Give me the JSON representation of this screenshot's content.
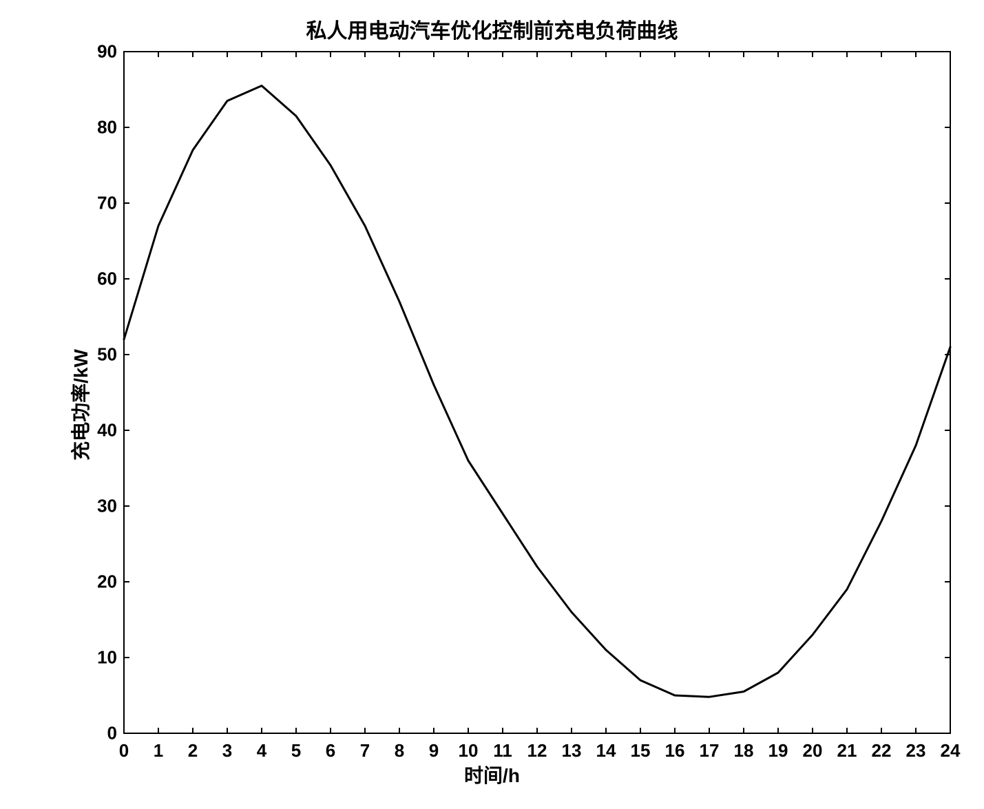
{
  "chart": {
    "type": "line",
    "title": "私人用电动汽车优化控制前充电负荷曲线",
    "title_fontsize": 30,
    "xlabel": "时间/h",
    "ylabel": "充电功率/kW",
    "label_fontsize": 28,
    "tick_fontsize": 26,
    "xlim": [
      0,
      24
    ],
    "ylim": [
      0,
      90
    ],
    "xtick_step": 1,
    "ytick_step": 10,
    "xticks": [
      0,
      1,
      2,
      3,
      4,
      5,
      6,
      7,
      8,
      9,
      10,
      11,
      12,
      13,
      14,
      15,
      16,
      17,
      18,
      19,
      20,
      21,
      22,
      23,
      24
    ],
    "yticks": [
      0,
      10,
      20,
      30,
      40,
      50,
      60,
      70,
      80,
      90
    ],
    "background_color": "#ffffff",
    "axis_color": "#000000",
    "line_color": "#000000",
    "line_width": 3,
    "tick_length": 8,
    "series": {
      "x": [
        0,
        1,
        2,
        3,
        3.5,
        4,
        4.5,
        5,
        6,
        7,
        8,
        9,
        10,
        11,
        12,
        13,
        14,
        15,
        16,
        17,
        18,
        19,
        20,
        21,
        22,
        23,
        24
      ],
      "y": [
        52,
        67,
        77,
        83.5,
        84.5,
        85.5,
        83.5,
        81.5,
        75,
        67,
        57,
        46,
        36,
        29,
        22,
        16,
        11,
        7,
        5,
        4.8,
        5.5,
        8,
        13,
        19,
        28,
        38,
        51
      ]
    }
  }
}
